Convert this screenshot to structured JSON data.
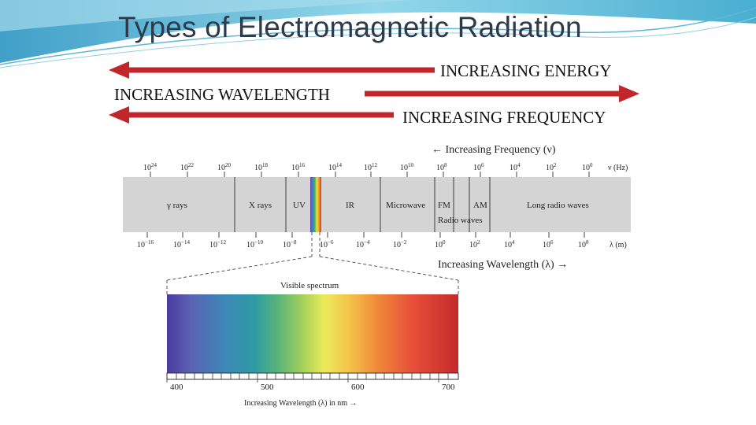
{
  "slide": {
    "title": "Types of Electromagnetic Radiation",
    "energy_label": "INCREASING ENERGY",
    "wavelength_label": "INCREASING WAVELENGTH",
    "frequency_label": "INCREASING FREQUENCY"
  },
  "colors": {
    "arrow": "#c0262b",
    "title": "#2d3a4a",
    "band": "#d4d4d4"
  },
  "spectrum": {
    "freq_header": "← Increasing Frequency (ν)",
    "freq_unit": "ν (Hz)",
    "freq_ticks": [
      {
        "base": "10",
        "exp": "24"
      },
      {
        "base": "10",
        "exp": "22"
      },
      {
        "base": "10",
        "exp": "20"
      },
      {
        "base": "10",
        "exp": "18"
      },
      {
        "base": "10",
        "exp": "16"
      },
      {
        "base": "10",
        "exp": "14"
      },
      {
        "base": "10",
        "exp": "12"
      },
      {
        "base": "10",
        "exp": "10"
      },
      {
        "base": "10",
        "exp": "8"
      },
      {
        "base": "10",
        "exp": "6"
      },
      {
        "base": "10",
        "exp": "4"
      },
      {
        "base": "10",
        "exp": "2"
      },
      {
        "base": "10",
        "exp": "0"
      }
    ],
    "bands": {
      "gamma": "γ rays",
      "xray": "X rays",
      "uv": "UV",
      "ir": "IR",
      "microwave": "Microwave",
      "fm": "FM",
      "am": "AM",
      "radio": "Radio waves",
      "long_radio": "Long radio waves"
    },
    "wave_unit": "λ (m)",
    "wave_ticks": [
      {
        "base": "10",
        "exp": "−16"
      },
      {
        "base": "10",
        "exp": "−14"
      },
      {
        "base": "10",
        "exp": "−12"
      },
      {
        "base": "10",
        "exp": "−10"
      },
      {
        "base": "10",
        "exp": "−8"
      },
      {
        "base": "10",
        "exp": "−6"
      },
      {
        "base": "10",
        "exp": "−4"
      },
      {
        "base": "10",
        "exp": "−2"
      },
      {
        "base": "10",
        "exp": "0"
      },
      {
        "base": "10",
        "exp": "2"
      },
      {
        "base": "10",
        "exp": "4"
      },
      {
        "base": "10",
        "exp": "6"
      },
      {
        "base": "10",
        "exp": "8"
      }
    ],
    "wave_header": "Increasing Wavelength (λ) →",
    "visible_title": "Visible spectrum",
    "visible_ticks": [
      "400",
      "500",
      "600",
      "700"
    ],
    "visible_axis": "Increasing Wavelength (λ) in nm →"
  }
}
